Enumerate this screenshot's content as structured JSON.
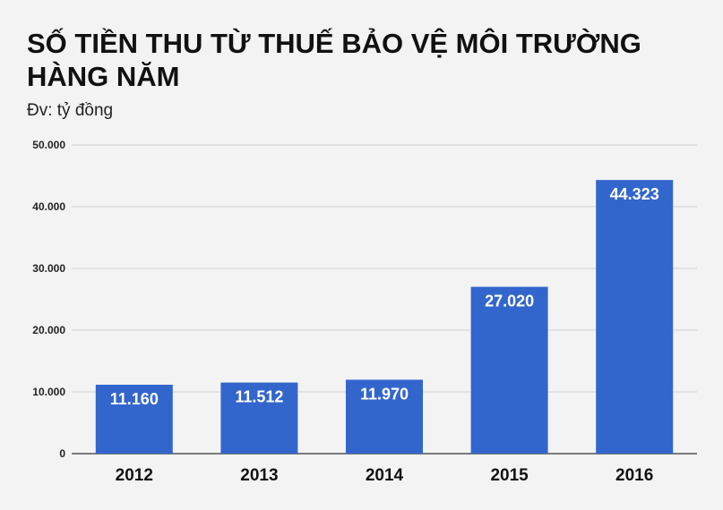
{
  "chart_data": {
    "type": "bar",
    "title": "SỐ TIỀN THU TỪ THUẾ BẢO VỆ MÔI TRƯỜNG HÀNG NĂM",
    "subtitle": "Đv: tỷ đồng",
    "categories": [
      "2012",
      "2013",
      "2014",
      "2015",
      "2016"
    ],
    "values": [
      11160,
      11512,
      11970,
      27020,
      44323
    ],
    "data_labels": [
      "11.160",
      "11.512",
      "11.970",
      "27.020",
      "44.323"
    ],
    "yticks": [
      0,
      10000,
      20000,
      30000,
      40000,
      50000
    ],
    "ytick_labels": [
      "0",
      "10.000",
      "20.000",
      "30.000",
      "40.000",
      "50.000"
    ],
    "ylim": [
      0,
      50000
    ],
    "grid": true,
    "bar_color": "#3366cc"
  }
}
